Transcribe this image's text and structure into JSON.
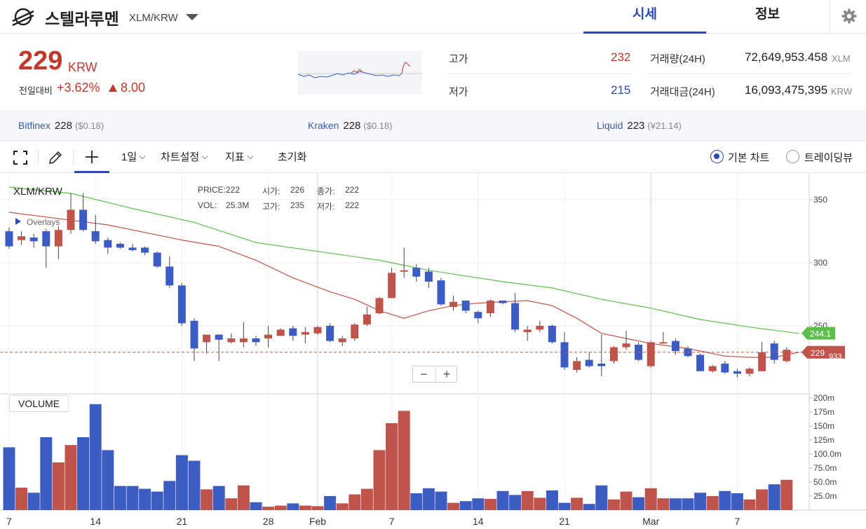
{
  "header": {
    "coin_name": "스텔라루멘",
    "pair": "XLM/KRW",
    "tabs": [
      {
        "label": "시세",
        "active": true
      },
      {
        "label": "정보",
        "active": false
      }
    ]
  },
  "summary": {
    "price": "229",
    "unit": "KRW",
    "change_label": "전일대비",
    "change_rate": "+3.62%",
    "change_value": "8.00",
    "high_label": "고가",
    "high": "232",
    "low_label": "저가",
    "low": "215",
    "volume_label": "거래량(24H)",
    "volume": "72,649,953.458",
    "volume_unit": "XLM",
    "amount_label": "거래대금(24H)",
    "amount": "16,093,475,395",
    "amount_unit": "KRW"
  },
  "exchanges": [
    {
      "name": "Bitfinex",
      "price": "228",
      "usd": "($0.18)"
    },
    {
      "name": "Kraken",
      "price": "228",
      "usd": "($0.18)"
    },
    {
      "name": "Liquid",
      "price": "223",
      "usd": "(¥21.14)"
    }
  ],
  "toolbar": {
    "interval": "1일",
    "chart_settings": "차트설정",
    "indicators": "지표",
    "reset": "초기화",
    "basic_chart": "기본 차트",
    "tradingview": "트레이딩뷰"
  },
  "chart": {
    "symbol": "XLM/KRW",
    "overlays_label": "Overlays",
    "volume_label": "VOLUME",
    "zoom_out": "−",
    "zoom_in": "+",
    "ohlc": {
      "price_label": "PRICE:",
      "price": "222",
      "open_label": "시가:",
      "open": "226",
      "close_label": "종가:",
      "close": "222",
      "vol_label": "VOL:",
      "vol": "25.3M",
      "high_label": "고가:",
      "high": "235",
      "low_label": "저가:",
      "low": "222"
    },
    "ma_green_tag": "244.1",
    "price_tag": "229",
    "price_tag_sub": "933"
  },
  "colors": {
    "up": "#c0544a",
    "down": "#3c5cc4",
    "ma_short": "#c0544a",
    "ma_long": "#5cbf4a",
    "accent": "#2a4bb5",
    "price_red": "#c0392b"
  },
  "chart_data": {
    "type": "candlestick",
    "x_ticks": [
      "7",
      "14",
      "21",
      "28",
      "Feb",
      "7",
      "14",
      "21",
      "Mar",
      "7"
    ],
    "price_ticks": [
      350,
      300,
      250
    ],
    "volume_ticks": [
      "200m",
      "175m",
      "150m",
      "125m",
      "100.0m",
      "75.0m",
      "50.0m",
      "25.0m"
    ],
    "candles": [
      [
        325,
        313,
        328,
        311
      ],
      [
        318,
        321,
        325,
        314
      ],
      [
        320,
        317,
        323,
        312
      ],
      [
        325,
        313,
        327,
        296
      ],
      [
        313,
        326,
        329,
        303
      ],
      [
        326,
        342,
        355,
        323
      ],
      [
        342,
        326,
        355,
        325
      ],
      [
        325,
        317,
        338,
        315
      ],
      [
        318,
        312,
        320,
        307
      ],
      [
        315,
        312,
        316,
        311
      ],
      [
        312,
        310,
        315,
        309
      ],
      [
        312,
        308,
        313,
        306
      ],
      [
        308,
        297,
        309,
        296
      ],
      [
        297,
        282,
        305,
        280
      ],
      [
        282,
        252,
        284,
        250
      ],
      [
        254,
        232,
        256,
        222
      ],
      [
        237,
        243,
        243,
        228
      ],
      [
        243,
        239,
        243,
        222
      ],
      [
        237,
        240,
        244,
        236
      ],
      [
        237,
        240,
        253,
        233
      ],
      [
        240,
        237,
        242,
        234
      ],
      [
        240,
        243,
        250,
        233
      ],
      [
        242,
        247,
        248,
        242
      ],
      [
        248,
        242,
        250,
        238
      ],
      [
        243,
        245,
        249,
        236
      ],
      [
        244,
        249,
        250,
        243
      ],
      [
        250,
        238,
        252,
        237
      ],
      [
        237,
        240,
        242,
        234
      ],
      [
        240,
        251,
        252,
        238
      ],
      [
        251,
        259,
        265,
        250
      ],
      [
        260,
        272,
        273,
        259
      ],
      [
        272,
        292,
        296,
        272
      ],
      [
        293,
        294,
        312,
        288
      ],
      [
        296,
        289,
        299,
        285
      ],
      [
        293,
        285,
        296,
        280
      ],
      [
        286,
        267,
        288,
        266
      ],
      [
        265,
        269,
        274,
        262
      ],
      [
        270,
        262,
        270,
        260
      ],
      [
        261,
        256,
        262,
        252
      ],
      [
        260,
        270,
        271,
        257
      ],
      [
        270,
        268,
        270,
        267
      ],
      [
        268,
        247,
        276,
        245
      ],
      [
        245,
        247,
        250,
        238
      ],
      [
        247,
        250,
        254,
        245
      ],
      [
        250,
        237,
        251,
        236
      ],
      [
        237,
        217,
        245,
        215
      ],
      [
        215,
        222,
        225,
        213
      ],
      [
        223,
        218,
        229,
        217
      ],
      [
        220,
        218,
        243,
        210
      ],
      [
        222,
        233,
        234,
        220
      ],
      [
        233,
        236,
        246,
        231
      ],
      [
        235,
        223,
        237,
        222
      ],
      [
        218,
        237,
        238,
        217
      ],
      [
        237,
        237,
        245,
        236
      ],
      [
        238,
        230,
        240,
        227
      ],
      [
        232,
        226,
        234,
        225
      ],
      [
        227,
        214,
        228,
        214
      ],
      [
        214,
        218,
        219,
        213
      ],
      [
        220,
        213,
        222,
        212
      ],
      [
        214,
        212,
        216,
        209
      ],
      [
        212,
        216,
        217,
        210
      ],
      [
        214,
        229,
        237,
        214
      ],
      [
        236,
        223,
        238,
        220
      ],
      [
        222,
        231,
        233,
        221
      ]
    ],
    "volumes": [
      112,
      40,
      31,
      130,
      85,
      116,
      130,
      189,
      107,
      43,
      43,
      38,
      33,
      52,
      98,
      88,
      37,
      43,
      21,
      44,
      14,
      6,
      8,
      12,
      8,
      7,
      25,
      12,
      28,
      38,
      107,
      155,
      177,
      30,
      39,
      33,
      13,
      16,
      21,
      20,
      34,
      27,
      34,
      22,
      35,
      13,
      22,
      11,
      44,
      19,
      33,
      23,
      39,
      21,
      21,
      21,
      31,
      25,
      34,
      30,
      19,
      37,
      46,
      54
    ],
    "ma_short": [
      [
        0,
        340
      ],
      [
        8,
        330
      ],
      [
        14,
        318
      ],
      [
        17,
        313
      ],
      [
        20,
        302
      ],
      [
        23,
        288
      ],
      [
        26,
        277
      ],
      [
        28,
        271
      ],
      [
        30,
        262
      ],
      [
        32,
        256
      ],
      [
        34,
        262
      ],
      [
        36,
        266
      ],
      [
        38,
        268
      ],
      [
        40,
        269
      ],
      [
        42,
        270
      ],
      [
        44,
        266
      ],
      [
        46,
        256
      ],
      [
        48,
        244
      ],
      [
        50,
        240
      ],
      [
        52,
        236
      ],
      [
        55,
        232
      ],
      [
        58,
        226
      ],
      [
        60,
        225
      ],
      [
        62,
        225
      ],
      [
        64,
        229
      ]
    ],
    "ma_long": [
      [
        0,
        360
      ],
      [
        5,
        355
      ],
      [
        10,
        343
      ],
      [
        15,
        332
      ],
      [
        20,
        316
      ],
      [
        25,
        309
      ],
      [
        30,
        302
      ],
      [
        32,
        298
      ],
      [
        34,
        294
      ],
      [
        36,
        291
      ],
      [
        40,
        285
      ],
      [
        44,
        280
      ],
      [
        48,
        271
      ],
      [
        52,
        264
      ],
      [
        56,
        255
      ],
      [
        60,
        249
      ],
      [
        64,
        244
      ]
    ]
  }
}
